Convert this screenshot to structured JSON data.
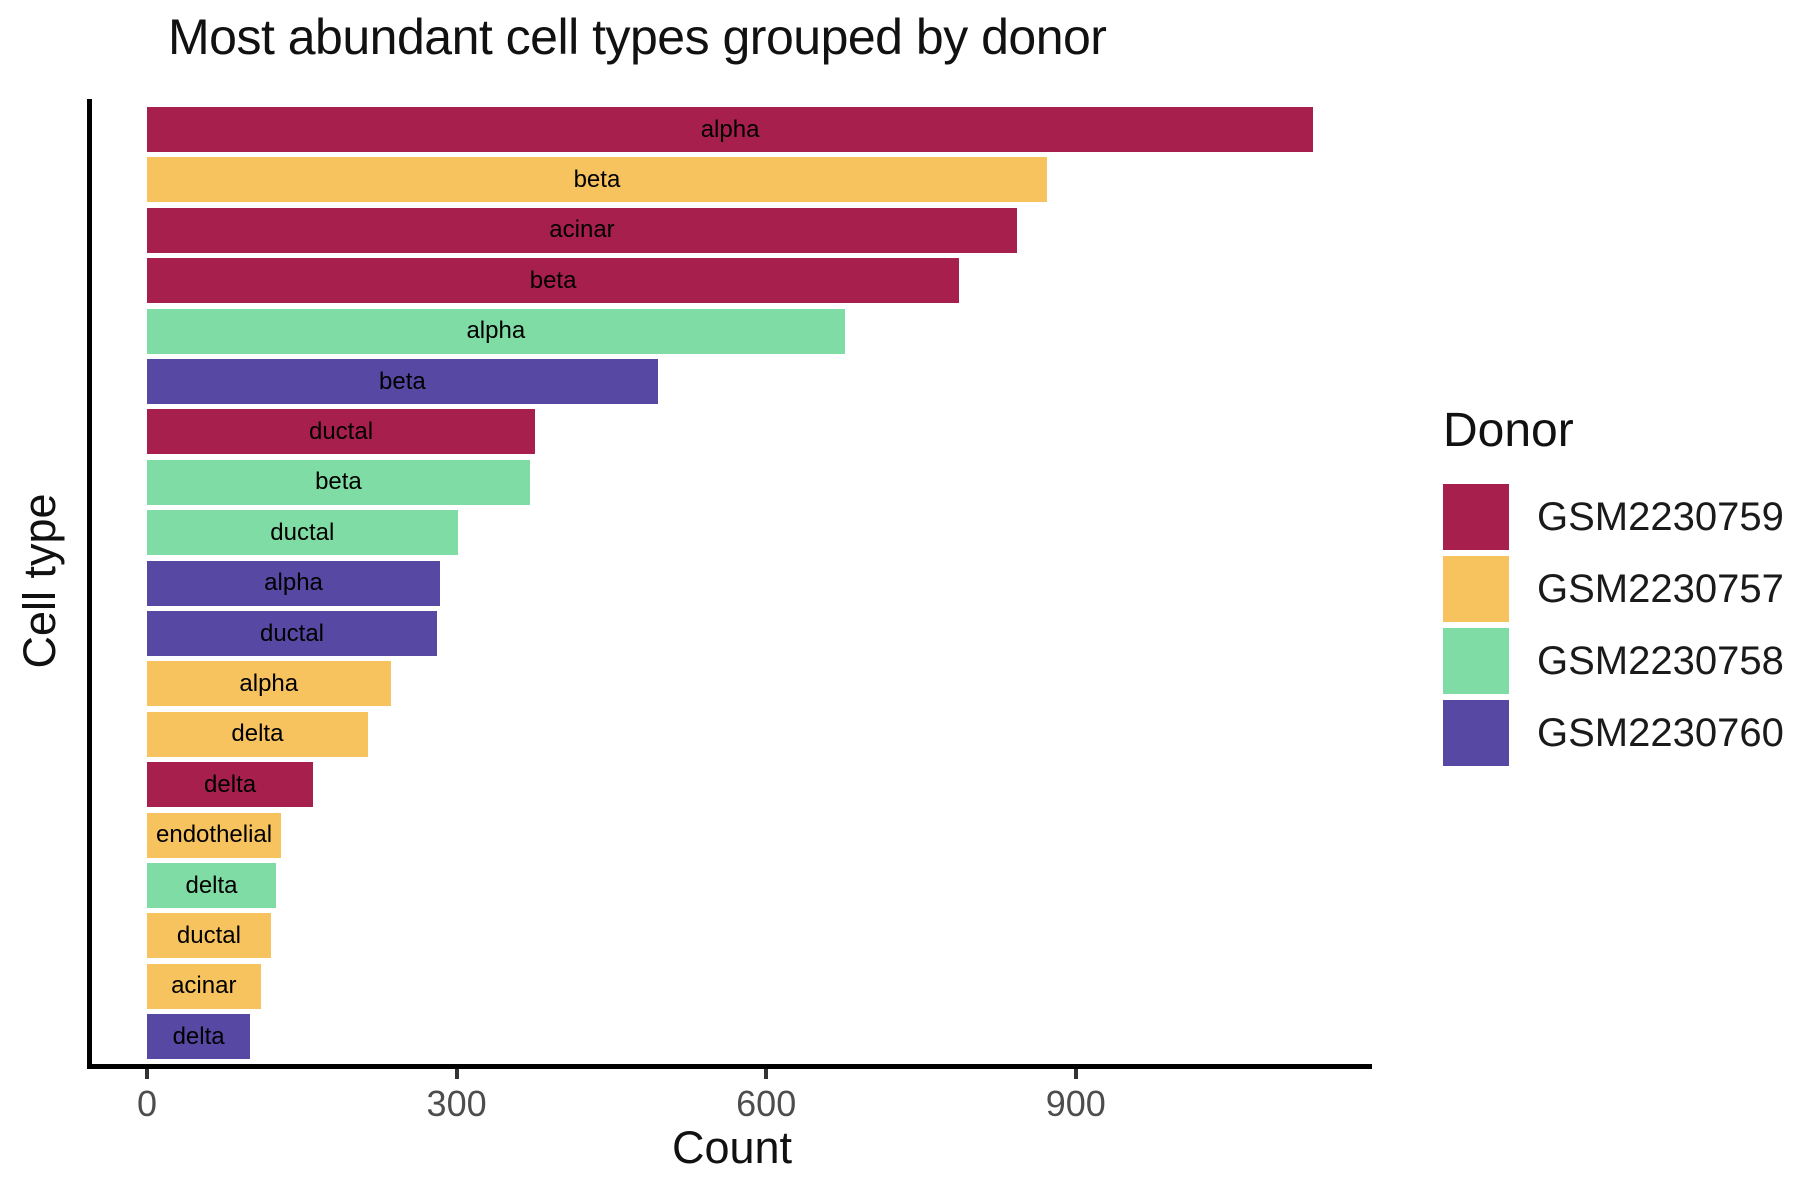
{
  "title": "Most abundant cell types grouped by donor",
  "x_axis": {
    "label": "Count",
    "ticks": [
      {
        "value": 0,
        "label": "0"
      },
      {
        "value": 300,
        "label": "300"
      },
      {
        "value": 600,
        "label": "600"
      },
      {
        "value": 900,
        "label": "900"
      }
    ]
  },
  "y_axis": {
    "label": "Cell type"
  },
  "legend": {
    "title": "Donor",
    "items": [
      {
        "label": "GSM2230759",
        "color": "#A61F4D"
      },
      {
        "label": "GSM2230757",
        "color": "#F7C35F"
      },
      {
        "label": "GSM2230758",
        "color": "#7FDCA4"
      },
      {
        "label": "GSM2230760",
        "color": "#5748A3"
      }
    ]
  },
  "chart_data": {
    "type": "bar",
    "orientation": "horizontal",
    "title": "Most abundant cell types grouped by donor",
    "xlabel": "Count",
    "ylabel": "Cell type",
    "xlim": [
      0,
      1190
    ],
    "x_ticks": [
      0,
      300,
      600,
      900
    ],
    "grid": false,
    "legend_title": "Donor",
    "legend_position": "right",
    "bar_label_position": "center-inside",
    "donor_colors": {
      "GSM2230759": "#A61F4D",
      "GSM2230757": "#F7C35F",
      "GSM2230758": "#7FDCA4",
      "GSM2230760": "#5748A3"
    },
    "bars": [
      {
        "cell_type": "alpha",
        "donor": "GSM2230759",
        "count": 1130
      },
      {
        "cell_type": "beta",
        "donor": "GSM2230757",
        "count": 872
      },
      {
        "cell_type": "acinar",
        "donor": "GSM2230759",
        "count": 843
      },
      {
        "cell_type": "beta",
        "donor": "GSM2230759",
        "count": 787
      },
      {
        "cell_type": "alpha",
        "donor": "GSM2230758",
        "count": 676
      },
      {
        "cell_type": "beta",
        "donor": "GSM2230760",
        "count": 495
      },
      {
        "cell_type": "ductal",
        "donor": "GSM2230759",
        "count": 376
      },
      {
        "cell_type": "beta",
        "donor": "GSM2230758",
        "count": 371
      },
      {
        "cell_type": "ductal",
        "donor": "GSM2230758",
        "count": 301
      },
      {
        "cell_type": "alpha",
        "donor": "GSM2230760",
        "count": 284
      },
      {
        "cell_type": "ductal",
        "donor": "GSM2230760",
        "count": 281
      },
      {
        "cell_type": "alpha",
        "donor": "GSM2230757",
        "count": 236
      },
      {
        "cell_type": "delta",
        "donor": "GSM2230757",
        "count": 214
      },
      {
        "cell_type": "delta",
        "donor": "GSM2230759",
        "count": 161
      },
      {
        "cell_type": "endothelial",
        "donor": "GSM2230757",
        "count": 130
      },
      {
        "cell_type": "delta",
        "donor": "GSM2230758",
        "count": 125
      },
      {
        "cell_type": "ductal",
        "donor": "GSM2230757",
        "count": 120
      },
      {
        "cell_type": "acinar",
        "donor": "GSM2230757",
        "count": 110
      },
      {
        "cell_type": "delta",
        "donor": "GSM2230760",
        "count": 100
      }
    ]
  }
}
